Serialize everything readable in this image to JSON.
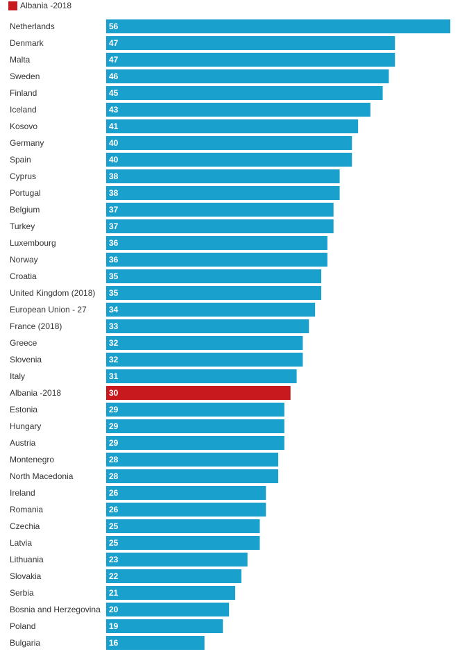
{
  "legend": {
    "label": "Albania -2018",
    "color": "#c8191e"
  },
  "colors": {
    "bar": "#1aa0cd",
    "highlight": "#c8191e"
  },
  "chart_data": {
    "type": "bar",
    "orientation": "horizontal",
    "legend_position": "top-left",
    "grid": false,
    "xlim": [
      0,
      56
    ],
    "highlight_category": "Albania -2018",
    "categories": [
      "Netherlands",
      "Denmark",
      "Malta",
      "Sweden",
      "Finland",
      "Iceland",
      "Kosovo",
      "Germany",
      "Spain",
      "Cyprus",
      "Portugal",
      "Belgium",
      "Turkey",
      "Luxembourg",
      "Norway",
      "Croatia",
      "United Kingdom (2018)",
      "European Union - 27",
      "France (2018)",
      "Greece",
      "Slovenia",
      "Italy",
      "Albania -2018",
      "Estonia",
      "Hungary",
      "Austria",
      "Montenegro",
      "North Macedonia",
      "Ireland",
      "Romania",
      "Czechia",
      "Latvia",
      "Lithuania",
      "Slovakia",
      "Serbia",
      "Bosnia and Herzegovina",
      "Poland",
      "Bulgaria"
    ],
    "values": [
      56,
      47,
      47,
      46,
      45,
      43,
      41,
      40,
      40,
      38,
      38,
      37,
      37,
      36,
      36,
      35,
      35,
      34,
      33,
      32,
      32,
      31,
      30,
      29,
      29,
      29,
      28,
      28,
      26,
      26,
      25,
      25,
      23,
      22,
      21,
      20,
      19,
      16
    ]
  }
}
